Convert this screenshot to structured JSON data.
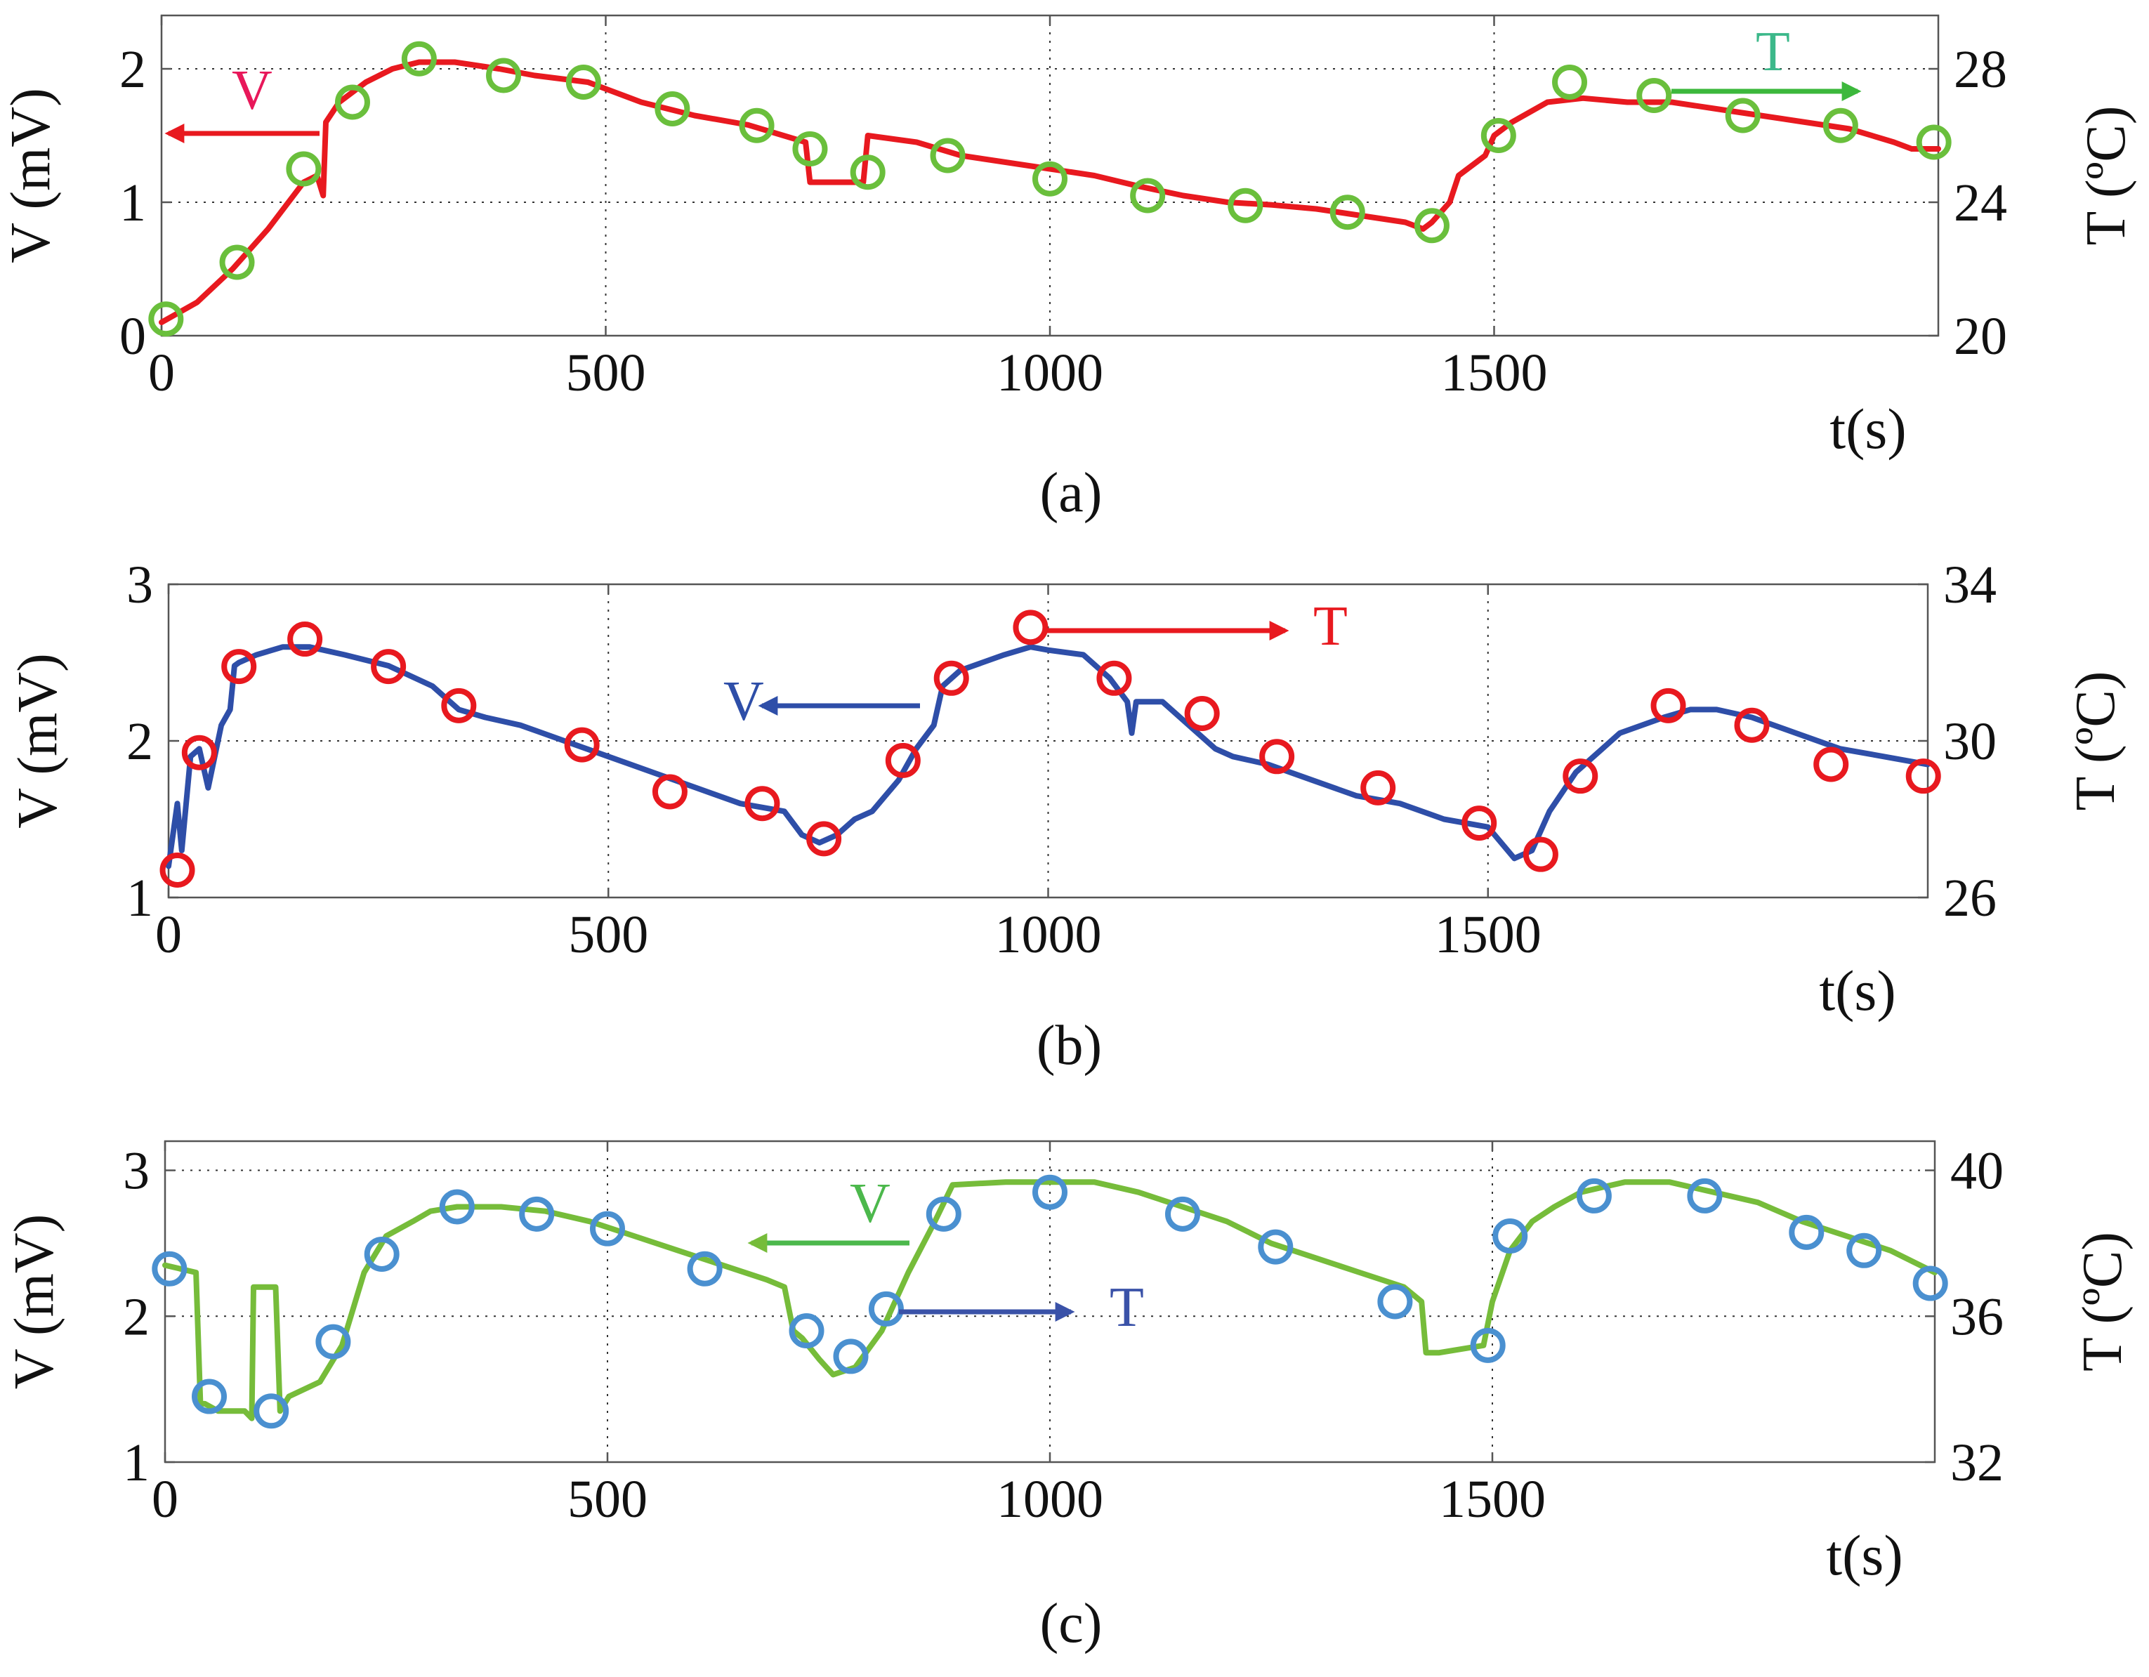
{
  "chart_data": [
    {
      "type": "line",
      "panel_label": "(a)",
      "xlabel": "t(s)",
      "ylabel_left": "V (mV)",
      "ylabel_right": "T (ºC)",
      "xlim": [
        0,
        2000
      ],
      "ylim_left": [
        0,
        2.4
      ],
      "ylim_right": [
        20,
        29.6
      ],
      "x_ticks": [
        "0",
        "500",
        "1000",
        "1500"
      ],
      "x_tick_values": [
        0,
        500,
        1000,
        1500
      ],
      "y_left_ticks": [
        "0",
        "1",
        "2"
      ],
      "y_left_tick_values": [
        0,
        1,
        2
      ],
      "y_right_ticks": [
        "20",
        "24",
        "28"
      ],
      "y_right_tick_values": [
        20,
        24,
        28
      ],
      "colors": {
        "line": "#e8191f",
        "markers": "#6abf3c",
        "v_label": "#e8185a",
        "t_label": "#3cb88a"
      },
      "annotations": {
        "v_label": "V",
        "t_label": "T",
        "v_arrow": "left",
        "t_arrow": "right"
      },
      "series": [
        {
          "name": "V",
          "axis": "left",
          "x": [
            0,
            40,
            80,
            120,
            160,
            175,
            182,
            185,
            200,
            230,
            260,
            290,
            330,
            380,
            420,
            480,
            540,
            600,
            660,
            700,
            725,
            730,
            760,
            790,
            795,
            850,
            900,
            950,
            1000,
            1050,
            1100,
            1150,
            1200,
            1250,
            1300,
            1350,
            1400,
            1420,
            1430,
            1450,
            1460,
            1480,
            1490,
            1500,
            1520,
            1560,
            1600,
            1650,
            1700,
            1750,
            1800,
            1850,
            1900,
            1950,
            1970,
            2000
          ],
          "y": [
            0.1,
            0.25,
            0.5,
            0.8,
            1.15,
            1.2,
            1.05,
            1.6,
            1.75,
            1.9,
            2.0,
            2.05,
            2.05,
            2.0,
            1.95,
            1.9,
            1.75,
            1.65,
            1.58,
            1.5,
            1.45,
            1.15,
            1.15,
            1.15,
            1.5,
            1.45,
            1.35,
            1.3,
            1.25,
            1.2,
            1.12,
            1.05,
            1.0,
            0.98,
            0.95,
            0.9,
            0.85,
            0.8,
            0.85,
            1.0,
            1.2,
            1.3,
            1.35,
            1.5,
            1.6,
            1.75,
            1.78,
            1.75,
            1.75,
            1.7,
            1.65,
            1.6,
            1.55,
            1.45,
            1.4,
            1.4
          ]
        },
        {
          "name": "T",
          "axis": "right",
          "marker": "circle-open",
          "x": [
            5,
            85,
            160,
            215,
            290,
            385,
            475,
            575,
            670,
            730,
            795,
            885,
            1000,
            1110,
            1220,
            1335,
            1430,
            1505,
            1585,
            1680,
            1780,
            1890,
            1995
          ],
          "y": [
            20.5,
            22.2,
            25.0,
            27.0,
            28.3,
            27.8,
            27.6,
            26.8,
            26.3,
            25.6,
            24.9,
            25.4,
            24.7,
            24.2,
            23.9,
            23.7,
            23.3,
            26.0,
            27.6,
            27.2,
            26.6,
            26.3,
            25.8
          ]
        }
      ]
    },
    {
      "type": "line",
      "panel_label": "(b)",
      "xlabel": "t(s)",
      "ylabel_left": "V (mV)",
      "ylabel_right": "T (ºC)",
      "xlim": [
        0,
        2000
      ],
      "ylim_left": [
        1,
        3
      ],
      "ylim_right": [
        26,
        34
      ],
      "x_ticks": [
        "0",
        "500",
        "1000",
        "1500"
      ],
      "x_tick_values": [
        0,
        500,
        1000,
        1500
      ],
      "y_left_ticks": [
        "1",
        "2",
        "3"
      ],
      "y_left_tick_values": [
        1,
        2,
        3
      ],
      "y_right_ticks": [
        "26",
        "30",
        "34"
      ],
      "y_right_tick_values": [
        26,
        30,
        34
      ],
      "colors": {
        "line": "#2e4ea8",
        "markers": "#e8191f",
        "v_label": "#2e4ea8",
        "t_label": "#e8191f"
      },
      "annotations": {
        "v_label": "V",
        "t_label": "T",
        "v_arrow": "left",
        "t_arrow": "right"
      },
      "series": [
        {
          "name": "V",
          "axis": "left",
          "x": [
            0,
            10,
            15,
            25,
            35,
            45,
            60,
            70,
            75,
            80,
            100,
            130,
            160,
            200,
            250,
            300,
            330,
            360,
            400,
            450,
            500,
            550,
            600,
            650,
            700,
            720,
            740,
            760,
            780,
            800,
            830,
            850,
            870,
            880,
            900,
            950,
            980,
            1000,
            1040,
            1070,
            1090,
            1095,
            1100,
            1130,
            1160,
            1190,
            1210,
            1250,
            1300,
            1350,
            1400,
            1450,
            1500,
            1530,
            1550,
            1570,
            1600,
            1650,
            1700,
            1730,
            1760,
            1800,
            1850,
            1900,
            1950,
            2000
          ],
          "y": [
            1.2,
            1.6,
            1.3,
            1.9,
            1.95,
            1.7,
            2.1,
            2.2,
            2.48,
            2.5,
            2.55,
            2.6,
            2.6,
            2.55,
            2.48,
            2.35,
            2.2,
            2.15,
            2.1,
            2.0,
            1.9,
            1.8,
            1.7,
            1.6,
            1.55,
            1.4,
            1.35,
            1.4,
            1.5,
            1.55,
            1.75,
            1.95,
            2.1,
            2.35,
            2.45,
            2.55,
            2.6,
            2.58,
            2.55,
            2.4,
            2.25,
            2.05,
            2.25,
            2.25,
            2.1,
            1.95,
            1.9,
            1.85,
            1.75,
            1.65,
            1.6,
            1.5,
            1.45,
            1.25,
            1.3,
            1.55,
            1.8,
            2.05,
            2.15,
            2.2,
            2.2,
            2.15,
            2.05,
            1.95,
            1.9,
            1.85
          ]
        },
        {
          "name": "T",
          "axis": "right",
          "marker": "circle-open",
          "x": [
            10,
            35,
            80,
            155,
            250,
            330,
            470,
            570,
            675,
            745,
            835,
            890,
            980,
            1075,
            1175,
            1260,
            1375,
            1490,
            1560,
            1605,
            1705,
            1800,
            1890,
            1995
          ],
          "y": [
            26.7,
            29.7,
            31.9,
            32.6,
            31.9,
            30.9,
            29.9,
            28.7,
            28.4,
            27.5,
            29.5,
            31.6,
            32.9,
            31.6,
            30.7,
            29.6,
            28.8,
            27.9,
            27.1,
            29.1,
            30.9,
            30.4,
            29.4,
            29.1
          ]
        }
      ]
    },
    {
      "type": "line",
      "panel_label": "(c)",
      "xlabel": "t(s)",
      "ylabel_left": "V (mV)",
      "ylabel_right": "T (ºC)",
      "xlim": [
        0,
        2000
      ],
      "ylim_left": [
        1,
        3.2
      ],
      "ylim_right": [
        32,
        40.8
      ],
      "x_ticks": [
        "0",
        "500",
        "1000",
        "1500"
      ],
      "x_tick_values": [
        0,
        500,
        1000,
        1500
      ],
      "y_left_ticks": [
        "1",
        "2",
        "3"
      ],
      "y_left_tick_values": [
        1,
        2,
        3
      ],
      "y_right_ticks": [
        "32",
        "36",
        "40"
      ],
      "y_right_tick_values": [
        32,
        36,
        40
      ],
      "colors": {
        "line": "#76bc3a",
        "markers": "#4a90d0",
        "v_label": "#4cb84c",
        "t_label": "#3a52a8"
      },
      "annotations": {
        "v_label": "V",
        "t_label": "T",
        "v_arrow": "left",
        "t_arrow": "right"
      },
      "series": [
        {
          "name": "V",
          "axis": "left",
          "x": [
            0,
            35,
            40,
            45,
            60,
            90,
            98,
            100,
            105,
            125,
            130,
            140,
            175,
            200,
            225,
            250,
            280,
            300,
            330,
            380,
            430,
            480,
            530,
            580,
            630,
            680,
            700,
            710,
            720,
            740,
            755,
            780,
            810,
            840,
            870,
            890,
            950,
            1000,
            1050,
            1100,
            1150,
            1200,
            1250,
            1300,
            1350,
            1400,
            1420,
            1425,
            1440,
            1490,
            1500,
            1520,
            1545,
            1570,
            1600,
            1650,
            1700,
            1750,
            1800,
            1850,
            1900,
            1950,
            2000
          ],
          "y": [
            2.35,
            2.3,
            1.4,
            1.4,
            1.35,
            1.35,
            1.3,
            2.2,
            2.2,
            2.2,
            1.35,
            1.45,
            1.55,
            1.8,
            2.3,
            2.55,
            2.65,
            2.72,
            2.75,
            2.75,
            2.72,
            2.65,
            2.55,
            2.45,
            2.35,
            2.25,
            2.2,
            1.9,
            1.85,
            1.7,
            1.6,
            1.65,
            1.9,
            2.3,
            2.65,
            2.9,
            2.92,
            2.92,
            2.92,
            2.85,
            2.75,
            2.65,
            2.5,
            2.4,
            2.3,
            2.2,
            2.1,
            1.75,
            1.75,
            1.8,
            2.1,
            2.45,
            2.65,
            2.75,
            2.85,
            2.92,
            2.92,
            2.85,
            2.78,
            2.65,
            2.55,
            2.45,
            2.3
          ]
        },
        {
          "name": "T",
          "axis": "right",
          "marker": "circle-open",
          "x": [
            5,
            50,
            120,
            190,
            245,
            330,
            420,
            500,
            610,
            725,
            775,
            815,
            880,
            1000,
            1150,
            1255,
            1390,
            1495,
            1520,
            1615,
            1740,
            1855,
            1920,
            1995
          ],
          "y": [
            37.3,
            33.8,
            33.4,
            35.3,
            37.7,
            39.0,
            38.8,
            38.4,
            37.3,
            35.6,
            34.9,
            36.2,
            38.8,
            39.4,
            38.8,
            37.9,
            36.4,
            35.2,
            38.2,
            39.3,
            39.3,
            38.3,
            37.8,
            36.9
          ]
        }
      ]
    }
  ]
}
